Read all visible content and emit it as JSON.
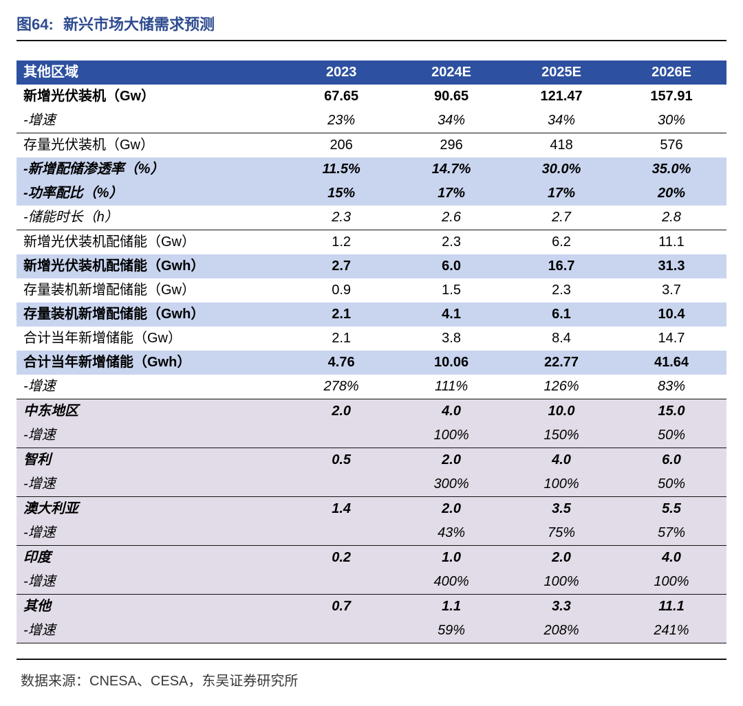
{
  "title": {
    "figno": "图64:",
    "text": "新兴市场大储需求预测"
  },
  "table": {
    "columns": [
      "其他区域",
      "2023",
      "2024E",
      "2025E",
      "2026E"
    ],
    "rows": [
      {
        "label": "新增光伏装机（Gw）",
        "v": [
          "67.65",
          "90.65",
          "121.47",
          "157.91"
        ],
        "style": "bold"
      },
      {
        "label": "-增速",
        "v": [
          "23%",
          "34%",
          "34%",
          "30%"
        ],
        "style": "italic underline"
      },
      {
        "label": "存量光伏装机（Gw）",
        "v": [
          "206",
          "296",
          "418",
          "576"
        ],
        "style": ""
      },
      {
        "label": "-新增配储渗透率（%）",
        "v": [
          "11.5%",
          "14.7%",
          "30.0%",
          "35.0%"
        ],
        "style": "bolditalic bg-blue"
      },
      {
        "label": "-功率配比（%）",
        "v": [
          "15%",
          "17%",
          "17%",
          "20%"
        ],
        "style": "bolditalic bg-blue"
      },
      {
        "label": "-储能时长（h）",
        "v": [
          "2.3",
          "2.6",
          "2.7",
          "2.8"
        ],
        "style": "italic underline"
      },
      {
        "label": "新增光伏装机配储能（Gw）",
        "v": [
          "1.2",
          "2.3",
          "6.2",
          "11.1"
        ],
        "style": ""
      },
      {
        "label": "新增光伏装机配储能（Gwh）",
        "v": [
          "2.7",
          "6.0",
          "16.7",
          "31.3"
        ],
        "style": "bold bg-blue"
      },
      {
        "label": "存量装机新增配储能（Gw）",
        "v": [
          "0.9",
          "1.5",
          "2.3",
          "3.7"
        ],
        "style": ""
      },
      {
        "label": "存量装机新增配储能（Gwh）",
        "v": [
          "2.1",
          "4.1",
          "6.1",
          "10.4"
        ],
        "style": "bold bg-blue"
      },
      {
        "label": "合计当年新增储能（Gw）",
        "v": [
          "2.1",
          "3.8",
          "8.4",
          "14.7"
        ],
        "style": ""
      },
      {
        "label": "合计当年新增储能（Gwh）",
        "v": [
          "4.76",
          "10.06",
          "22.77",
          "41.64"
        ],
        "style": "bold bg-blue"
      },
      {
        "label": "-增速",
        "v": [
          "278%",
          "111%",
          "126%",
          "83%"
        ],
        "style": "italic underline"
      },
      {
        "label": "中东地区",
        "v": [
          "2.0",
          "4.0",
          "10.0",
          "15.0"
        ],
        "style": "bolditalic bg-purple"
      },
      {
        "label": "-增速",
        "v": [
          "",
          "100%",
          "150%",
          "50%"
        ],
        "style": "italic underline bg-purple"
      },
      {
        "label": "智利",
        "v": [
          "0.5",
          "2.0",
          "4.0",
          "6.0"
        ],
        "style": "bolditalic bg-purple"
      },
      {
        "label": "-增速",
        "v": [
          "",
          "300%",
          "100%",
          "50%"
        ],
        "style": "italic underline bg-purple"
      },
      {
        "label": "澳大利亚",
        "v": [
          "1.4",
          "2.0",
          "3.5",
          "5.5"
        ],
        "style": "bolditalic bg-purple"
      },
      {
        "label": "-增速",
        "v": [
          "",
          "43%",
          "75%",
          "57%"
        ],
        "style": "italic underline bg-purple"
      },
      {
        "label": "印度",
        "v": [
          "0.2",
          "1.0",
          "2.0",
          "4.0"
        ],
        "style": "bolditalic bg-purple"
      },
      {
        "label": "-增速",
        "v": [
          "",
          "400%",
          "100%",
          "100%"
        ],
        "style": "italic underline bg-purple"
      },
      {
        "label": "其他",
        "v": [
          "0.7",
          "1.1",
          "3.3",
          "11.1"
        ],
        "style": "bolditalic bg-purple"
      },
      {
        "label": "-增速",
        "v": [
          "",
          "59%",
          "208%",
          "241%"
        ],
        "style": "italic underline bg-purple"
      }
    ]
  },
  "source": "数据来源：CNESA、CESA，东吴证券研究所",
  "colors": {
    "header_bg": "#2d50a0",
    "header_fg": "#ffffff",
    "band_blue": "#c9d5ef",
    "band_purple": "#e2dce8",
    "title_color": "#2e4b8f",
    "rule_color": "#111111"
  }
}
